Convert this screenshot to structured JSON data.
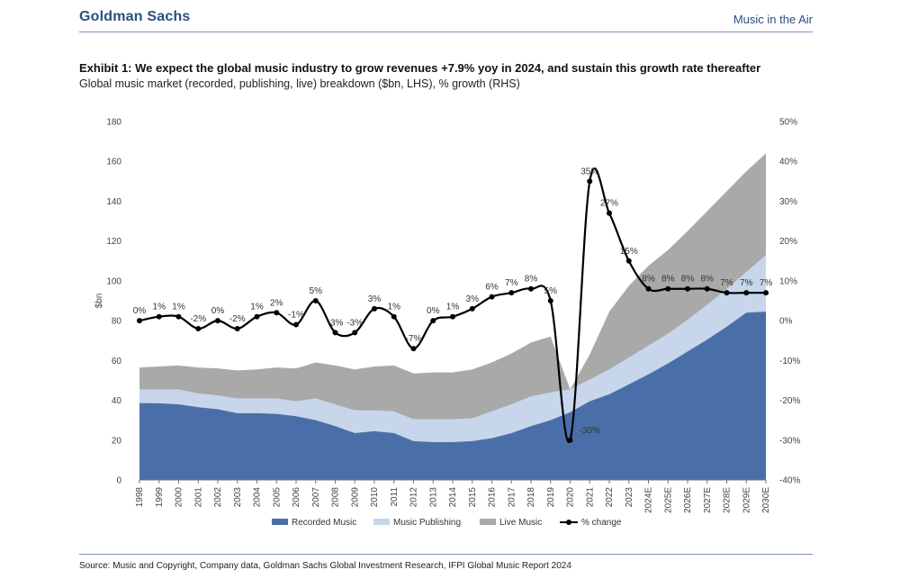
{
  "header": {
    "brand": "Goldman Sachs",
    "report_title": "Music in the Air"
  },
  "exhibit_title": "Exhibit 1: We expect the global music industry to grow revenues +7.9% yoy in 2024, and sustain this growth rate thereafter",
  "exhibit_subtitle": "Global music market (recorded, publishing, live) breakdown ($bn, LHS), % growth (RHS)",
  "source": "Source: Music and Copyright, Company data, Goldman Sachs Global Investment Research, IFPI Global Music Report 2024",
  "colors": {
    "recorded": "#4a6fa8",
    "publishing": "#c7d6ea",
    "live": "#a9a9a9",
    "change": "#000000",
    "brand": "#2a4f80"
  },
  "chart_data": {
    "type": "area",
    "categories": [
      "1998",
      "1999",
      "2000",
      "2001",
      "2002",
      "2003",
      "2004",
      "2005",
      "2006",
      "2007",
      "2008",
      "2009",
      "2010",
      "2011",
      "2012",
      "2013",
      "2014",
      "2015",
      "2016",
      "2017",
      "2018",
      "2019",
      "2020",
      "2021",
      "2022",
      "2023",
      "2024E",
      "2025E",
      "2026E",
      "2027E",
      "2028E",
      "2029E",
      "2030E"
    ],
    "ylabel": "$bn",
    "ylim": [
      0,
      180
    ],
    "yticks": [
      0,
      20,
      40,
      60,
      80,
      100,
      120,
      140,
      160,
      180
    ],
    "y2lim": [
      -40,
      50
    ],
    "y2ticks": [
      "50%",
      "40%",
      "30%",
      "20%",
      "10%",
      "0%",
      "-10%",
      "-20%",
      "-30%",
      "-40%"
    ],
    "y2tick_values": [
      50,
      40,
      30,
      20,
      10,
      0,
      -10,
      -20,
      -30,
      -40
    ],
    "series": [
      {
        "name": "Recorded Music",
        "stacked_values": [
          38.6,
          38.5,
          38,
          36.5,
          35.5,
          33.5,
          33.5,
          33.2,
          32,
          30,
          27,
          23.5,
          24.5,
          23.5,
          19.5,
          19,
          19,
          19.5,
          21,
          23.5,
          27,
          30,
          34,
          39.5,
          43,
          48,
          53,
          58.5,
          64.5,
          70.5,
          77,
          84,
          84.5
        ]
      },
      {
        "name": "Music  Publishing",
        "stacked_values": [
          45.5,
          45.5,
          45.5,
          43.5,
          42.5,
          41,
          41,
          41,
          39.5,
          41,
          38,
          35,
          35,
          34.5,
          30.5,
          30.5,
          30.5,
          31,
          34.5,
          38,
          42,
          44,
          45.5,
          50.5,
          55.5,
          61.5,
          67.5,
          73.5,
          80.5,
          88,
          96,
          104.5,
          113
        ]
      },
      {
        "name": "Live Music",
        "stacked_values": [
          56.5,
          57,
          57.5,
          56.5,
          56,
          55,
          55.5,
          56.5,
          56,
          59,
          57.5,
          55.5,
          57,
          57.5,
          53.5,
          54,
          54,
          55.5,
          59,
          63.5,
          69,
          72,
          45.5,
          63,
          84.5,
          97.5,
          107.5,
          115.5,
          125,
          135,
          145,
          155,
          164
        ]
      },
      {
        "name": "% change",
        "axis": "right",
        "values": [
          0,
          1,
          1,
          -2,
          0,
          -2,
          1,
          2,
          -1,
          5,
          -3,
          -3,
          3,
          1,
          -7,
          0,
          1,
          3,
          6,
          7,
          8,
          5,
          -30,
          35,
          27,
          15,
          8,
          8,
          8,
          8,
          7,
          7,
          7
        ],
        "labels": [
          "0%",
          "1%",
          "1%",
          "-2%",
          "0%",
          "-2%",
          "1%",
          "2%",
          "-1%",
          "5%",
          "-3%",
          "-3%",
          "3%",
          "1%",
          "-7%",
          "0%",
          "1%",
          "3%",
          "6%",
          "7%",
          "8%",
          "5%",
          "-30%",
          "35%",
          "27%",
          "15%",
          "8%",
          "8%",
          "8%",
          "8%",
          "7%",
          "7%",
          "7%"
        ]
      }
    ],
    "legend_position": "bottom",
    "grid": false
  }
}
